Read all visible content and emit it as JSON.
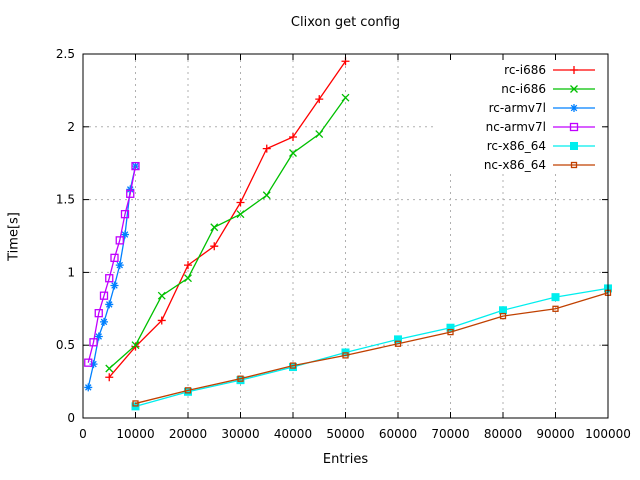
{
  "title": "Clixon get config",
  "chart_data": {
    "type": "line",
    "title": "Clixon get config",
    "xlabel": "Entries",
    "ylabel": "Time[s]",
    "xlim": [
      0,
      100000
    ],
    "ylim": [
      0,
      2.5
    ],
    "xticks": [
      0,
      10000,
      20000,
      30000,
      40000,
      50000,
      60000,
      70000,
      80000,
      90000,
      100000
    ],
    "xtick_labels": [
      "0",
      "10000",
      "20000",
      "30000",
      "40000",
      "50000",
      "60000",
      "70000",
      "80000",
      "90000",
      "100000"
    ],
    "yticks": [
      0,
      0.5,
      1,
      1.5,
      2,
      2.5
    ],
    "ytick_labels": [
      "0",
      "0.5",
      "1",
      "1.5",
      "2",
      "2.5"
    ],
    "grid": true,
    "grid_color": "#b0b0b0",
    "axis_color": "#000000",
    "background_color": "#ffffff",
    "legend_position": "top-right-inside",
    "series": [
      {
        "name": "rc-i686",
        "color": "#ff0000",
        "marker": "plus",
        "x": [
          5000,
          10000,
          15000,
          20000,
          25000,
          30000,
          35000,
          40000,
          45000,
          50000
        ],
        "y": [
          0.28,
          0.49,
          0.67,
          1.05,
          1.18,
          1.48,
          1.85,
          1.93,
          2.19,
          2.45
        ]
      },
      {
        "name": "nc-i686",
        "color": "#00c000",
        "marker": "cross",
        "x": [
          5000,
          10000,
          15000,
          20000,
          25000,
          30000,
          35000,
          40000,
          45000,
          50000
        ],
        "y": [
          0.34,
          0.5,
          0.84,
          0.96,
          1.31,
          1.4,
          1.53,
          1.82,
          1.95,
          2.2
        ]
      },
      {
        "name": "rc-armv7l",
        "color": "#0080ff",
        "marker": "asterisk",
        "x": [
          1000,
          2000,
          3000,
          4000,
          5000,
          6000,
          7000,
          8000,
          9000,
          10000
        ],
        "y": [
          0.21,
          0.37,
          0.56,
          0.66,
          0.78,
          0.91,
          1.05,
          1.26,
          1.57,
          1.73
        ]
      },
      {
        "name": "nc-armv7l",
        "color": "#c000ff",
        "marker": "open-square",
        "x": [
          1000,
          2000,
          3000,
          4000,
          5000,
          6000,
          7000,
          8000,
          9000,
          10000
        ],
        "y": [
          0.38,
          0.52,
          0.72,
          0.84,
          0.96,
          1.1,
          1.22,
          1.4,
          1.54,
          1.73
        ]
      },
      {
        "name": "rc-x86_64",
        "color": "#00eeee",
        "marker": "filled-square",
        "x": [
          10000,
          20000,
          30000,
          40000,
          50000,
          60000,
          70000,
          80000,
          90000,
          100000
        ],
        "y": [
          0.08,
          0.18,
          0.26,
          0.35,
          0.45,
          0.54,
          0.62,
          0.74,
          0.83,
          0.89
        ]
      },
      {
        "name": "nc-x86_64",
        "color": "#c04000",
        "marker": "open-square-small",
        "x": [
          10000,
          20000,
          30000,
          40000,
          50000,
          60000,
          70000,
          80000,
          90000,
          100000
        ],
        "y": [
          0.1,
          0.19,
          0.27,
          0.36,
          0.43,
          0.51,
          0.59,
          0.7,
          0.75,
          0.86
        ]
      }
    ]
  }
}
